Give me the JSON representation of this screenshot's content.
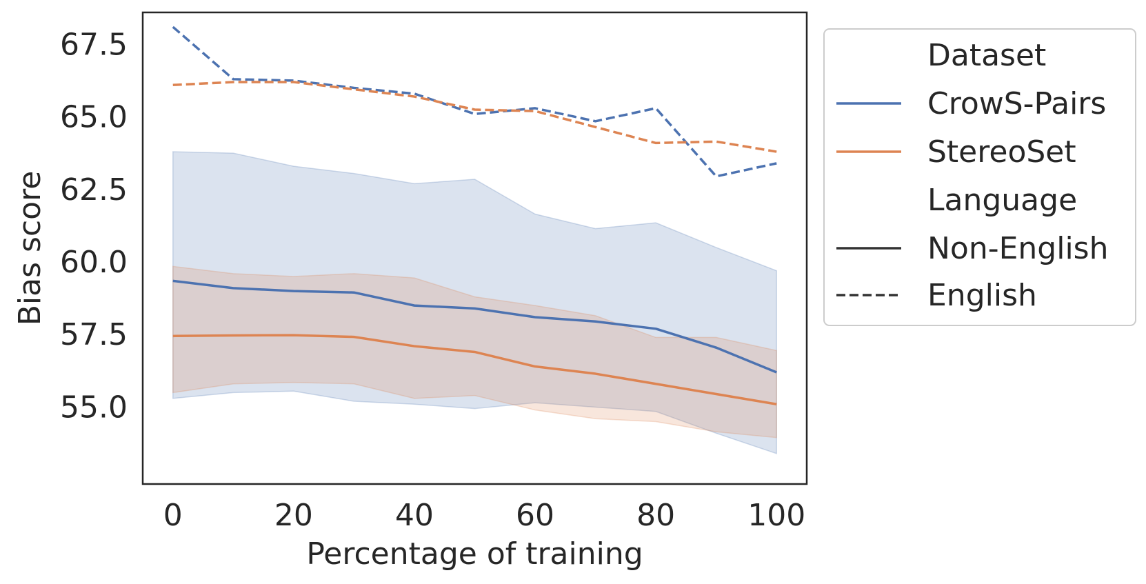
{
  "chart_data": {
    "type": "line",
    "title": "",
    "xlabel": "Percentage of training",
    "ylabel": "Bias score",
    "xlim": [
      -5,
      105
    ],
    "ylim": [
      52.35,
      68.6
    ],
    "xticks": [
      0,
      20,
      40,
      60,
      80,
      100
    ],
    "xtick_labels": [
      "0",
      "20",
      "40",
      "60",
      "80",
      "100"
    ],
    "yticks": [
      55.0,
      57.5,
      60.0,
      62.5,
      65.0,
      67.5
    ],
    "ytick_labels": [
      "55.0",
      "57.5",
      "60.0",
      "62.5",
      "65.0",
      "67.5"
    ],
    "grid": false,
    "legend_placement": "outside right",
    "x": [
      0,
      10,
      20,
      30,
      40,
      50,
      60,
      70,
      80,
      90,
      100
    ],
    "series": [
      {
        "name": "CrowS-Pairs",
        "language": "Non-English",
        "color": "#4c72b0",
        "dash": "solid",
        "values": [
          59.35,
          59.1,
          59.0,
          58.95,
          58.5,
          58.4,
          58.1,
          57.95,
          57.7,
          57.05,
          56.2
        ],
        "band_lower": [
          55.3,
          55.5,
          55.55,
          55.2,
          55.1,
          54.95,
          55.15,
          55.0,
          54.85,
          54.1,
          53.4
        ],
        "band_upper": [
          63.8,
          63.75,
          63.3,
          63.05,
          62.7,
          62.85,
          61.65,
          61.15,
          61.35,
          60.5,
          59.7
        ]
      },
      {
        "name": "StereoSet",
        "language": "Non-English",
        "color": "#dd8452",
        "dash": "solid",
        "values": [
          57.45,
          57.47,
          57.48,
          57.42,
          57.1,
          56.9,
          56.4,
          56.15,
          55.8,
          55.45,
          55.1
        ],
        "band_lower": [
          55.5,
          55.8,
          55.85,
          55.8,
          55.3,
          55.4,
          54.9,
          54.6,
          54.5,
          54.15,
          53.95
        ],
        "band_upper": [
          59.85,
          59.6,
          59.5,
          59.6,
          59.45,
          58.8,
          58.5,
          58.15,
          57.4,
          57.4,
          56.95
        ]
      },
      {
        "name": "CrowS-Pairs",
        "language": "English",
        "color": "#4c72b0",
        "dash": "dashed",
        "values": [
          68.1,
          66.3,
          66.25,
          66.0,
          65.8,
          65.1,
          65.3,
          64.85,
          65.3,
          62.95,
          63.4
        ]
      },
      {
        "name": "StereoSet",
        "language": "English",
        "color": "#dd8452",
        "dash": "dashed",
        "values": [
          66.1,
          66.2,
          66.2,
          65.95,
          65.7,
          65.25,
          65.2,
          64.65,
          64.1,
          64.15,
          63.8
        ]
      }
    ],
    "legend": {
      "dataset_title": "Dataset",
      "dataset_items": [
        {
          "label": "CrowS-Pairs",
          "color": "#4c72b0"
        },
        {
          "label": "StereoSet",
          "color": "#dd8452"
        }
      ],
      "language_title": "Language",
      "language_items": [
        {
          "label": "Non-English",
          "color": "#333333",
          "dash": "solid"
        },
        {
          "label": "English",
          "color": "#333333",
          "dash": "dashed"
        }
      ]
    }
  }
}
